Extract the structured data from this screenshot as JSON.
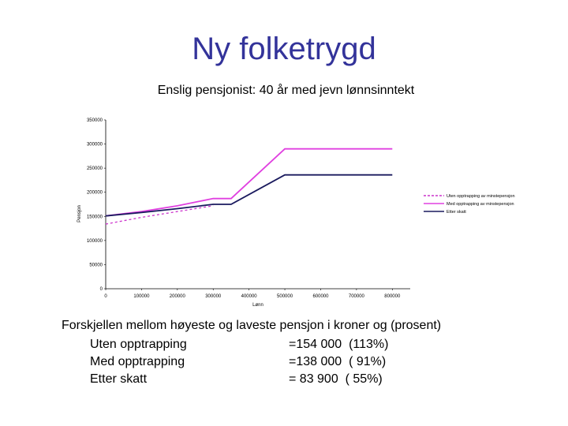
{
  "slide": {
    "title": "Ny folketrygd"
  },
  "chart_data": {
    "type": "line",
    "title": "Enslig pensjonist: 40 år med jevn lønnsinntekt",
    "xlabel": "Lønn",
    "ylabel": "Pensjon",
    "xlim": [
      0,
      850000
    ],
    "ylim": [
      0,
      350000
    ],
    "x_ticks": [
      "0",
      "100000",
      "200000",
      "300000",
      "400000",
      "500000",
      "600000",
      "700000",
      "800000"
    ],
    "y_ticks": [
      "0",
      "50000",
      "100000",
      "150000",
      "200000",
      "250000",
      "300000",
      "350000"
    ],
    "grid": false,
    "legend_position": "right",
    "series": [
      {
        "name": "Uten opptrapping av minstepensjon",
        "color": "#cc33cc",
        "style": "dashed",
        "x": [
          0,
          100000,
          200000,
          300000
        ],
        "y": [
          134000,
          148000,
          160000,
          172000
        ]
      },
      {
        "name": "Med opptrapping av minstepensjon",
        "color": "#e040e0",
        "style": "solid",
        "x": [
          0,
          100000,
          200000,
          300000,
          350000,
          500000,
          800000
        ],
        "y": [
          151000,
          160000,
          172000,
          187000,
          187000,
          290000,
          290000
        ]
      },
      {
        "name": "Etter skatt",
        "color": "#1a1a5e",
        "style": "solid",
        "x": [
          0,
          100000,
          200000,
          300000,
          350000,
          500000,
          800000
        ],
        "y": [
          151000,
          158000,
          166000,
          175000,
          175000,
          236000,
          236000
        ]
      }
    ]
  },
  "difference": {
    "heading": "Forskjellen mellom høyeste og laveste pensjon i kroner og (prosent)",
    "rows": [
      {
        "label": "Uten opptrapping",
        "value": "=154 000  (113%)"
      },
      {
        "label": "Med opptrapping",
        "value": "=138 000  ( 91%)"
      },
      {
        "label": "Etter skatt",
        "value": "= 83 900  ( 55%)"
      }
    ]
  }
}
